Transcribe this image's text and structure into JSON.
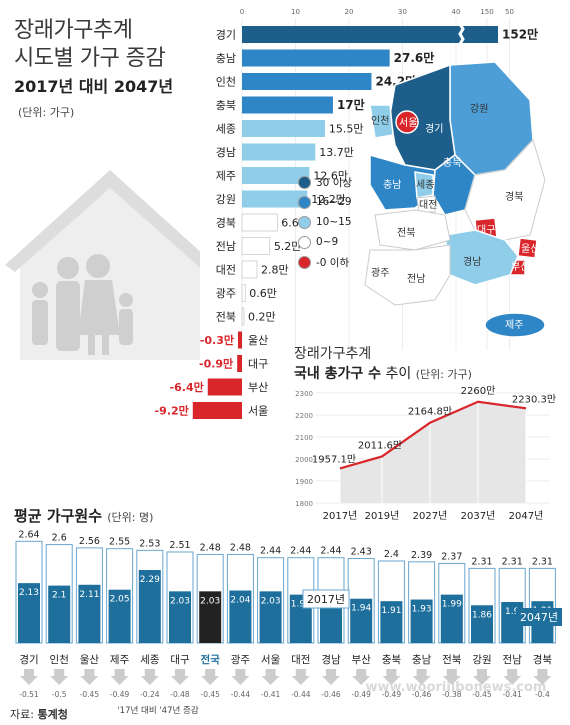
{
  "header": {
    "title_line1": "장래가구추계",
    "title_line2": "시도별 가구 증감",
    "period": "2017년 대비 2047년",
    "unit": "(단위: 가구)"
  },
  "legend": {
    "items": [
      {
        "label": "30 이상",
        "color": "#1d5f8a"
      },
      {
        "label": "16~29",
        "color": "#2f86c6"
      },
      {
        "label": "10~15",
        "color": "#8fcde9"
      },
      {
        "label": "0~9",
        "color": "#ffffff"
      },
      {
        "label": "-0 이하",
        "color": "#d8262b"
      }
    ]
  },
  "map": {
    "labels": [
      "강원",
      "경기",
      "서울",
      "인천",
      "충북",
      "충남",
      "세종",
      "대전",
      "경북",
      "전북",
      "대구",
      "울산",
      "부산",
      "경남",
      "광주",
      "전남",
      "제주"
    ]
  },
  "trend_chart": {
    "title": "장래가구추계",
    "subtitle_bold": "국내 총가구 수",
    "subtitle_rest": " 추이",
    "unit": "(단위: 가구)"
  },
  "bottom_chart": {
    "title": "평균 가구원수",
    "unit": "(단위: 명)",
    "legend_2017": "2017년",
    "legend_2047": "2047년",
    "footnote": "'17년 대비 '47년 증감"
  },
  "source": {
    "label": "자료:",
    "name": "통계청"
  },
  "watermark": "www.wooriilbonews.com",
  "chart_data": [
    {
      "type": "bar",
      "orientation": "horizontal",
      "title": "시도별 가구 증감",
      "unit": "만",
      "xlim": [
        0,
        152
      ],
      "x_ticks": [
        0,
        10,
        20,
        30,
        40,
        50,
        150
      ],
      "axis_break": true,
      "categories": [
        "경기",
        "충남",
        "인천",
        "충북",
        "세종",
        "경남",
        "제주",
        "강원",
        "경북",
        "전남",
        "대전",
        "광주",
        "전북",
        "울산",
        "대구",
        "부산",
        "서울"
      ],
      "values": [
        152,
        27.6,
        24.2,
        17,
        15.5,
        13.7,
        12.6,
        12.2,
        6.6,
        5.2,
        2.8,
        0.6,
        0.2,
        -0.3,
        -0.9,
        -6.4,
        -9.2
      ],
      "value_labels": [
        "152만",
        "27.6만",
        "24.2만",
        "17만",
        "15.5만",
        "13.7만",
        "12.6만",
        "12.2만",
        "6.6만",
        "5.2만",
        "2.8만",
        "0.6만",
        "0.2만",
        "-0.3만",
        "-0.9만",
        "-6.4만",
        "-9.2만"
      ]
    },
    {
      "type": "area",
      "title": "국내 총가구 수 추이",
      "unit": "만",
      "x": [
        "2017년",
        "2019년",
        "2027년",
        "2037년",
        "2047년"
      ],
      "values": [
        1957.1,
        2011.6,
        2164.8,
        2260,
        2230.3
      ],
      "value_labels": [
        "1957.1만",
        "2011.6만",
        "2164.8만",
        "2260만",
        "2230.3만"
      ],
      "ylim": [
        1800,
        2300
      ],
      "y_ticks": [
        1800,
        1900,
        2000,
        2100,
        2200,
        2300
      ],
      "line_color": "#d8262b"
    },
    {
      "type": "bar",
      "title": "평균 가구원수",
      "unit": "명",
      "categories": [
        "경기",
        "인천",
        "울산",
        "제주",
        "세종",
        "대구",
        "전국",
        "광주",
        "서울",
        "대전",
        "경남",
        "부산",
        "충북",
        "충남",
        "전북",
        "강원",
        "전남",
        "경북"
      ],
      "series": [
        {
          "name": "2017년",
          "values": [
            2.64,
            2.6,
            2.56,
            2.55,
            2.53,
            2.51,
            2.48,
            2.48,
            2.44,
            2.44,
            2.44,
            2.43,
            2.4,
            2.39,
            2.37,
            2.31,
            2.31,
            2.31
          ]
        },
        {
          "name": "2047년",
          "values": [
            2.13,
            2.1,
            2.11,
            2.05,
            2.29,
            2.03,
            2.03,
            2.04,
            2.03,
            1.99,
            1.99,
            1.94,
            1.91,
            1.93,
            1.99,
            1.86,
            1.9,
            1.91
          ]
        }
      ],
      "change_labels": [
        "-0.51",
        "-0.5",
        "-0.45",
        "-0.49",
        "-0.24",
        "-0.48",
        "-0.45",
        "-0.44",
        "-0.41",
        "-0.44",
        "-0.46",
        "-0.49",
        "-0.49",
        "-0.46",
        "-0.38",
        "-0.45",
        "-0.41",
        "-0.4"
      ],
      "highlight": "전국"
    }
  ]
}
